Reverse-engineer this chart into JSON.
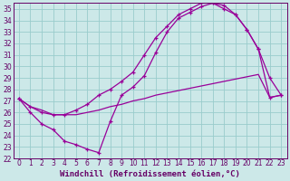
{
  "xlabel": "Windchill (Refroidissement éolien,°C)",
  "xlim": [
    -0.5,
    23.5
  ],
  "ylim": [
    22,
    35.5
  ],
  "xticks": [
    0,
    1,
    2,
    3,
    4,
    5,
    6,
    7,
    8,
    9,
    10,
    11,
    12,
    13,
    14,
    15,
    16,
    17,
    18,
    19,
    20,
    21,
    22,
    23
  ],
  "yticks": [
    22,
    23,
    24,
    25,
    26,
    27,
    28,
    29,
    30,
    31,
    32,
    33,
    34,
    35
  ],
  "bg_color": "#cce8e8",
  "grid_color": "#99cccc",
  "line_color": "#990099",
  "line1_x": [
    0,
    1,
    2,
    3,
    4,
    5,
    6,
    7,
    8,
    9,
    10,
    11,
    12,
    13,
    14,
    15,
    16,
    17,
    18,
    19,
    20,
    21,
    22,
    23
  ],
  "line1_y": [
    27.2,
    26.0,
    25.0,
    24.5,
    23.5,
    23.2,
    22.8,
    22.5,
    25.2,
    27.5,
    28.2,
    29.2,
    31.2,
    33.0,
    34.2,
    34.7,
    35.2,
    35.5,
    35.3,
    34.5,
    33.2,
    31.5,
    29.0,
    27.5
  ],
  "line2_x": [
    0,
    1,
    2,
    3,
    4,
    5,
    6,
    7,
    8,
    9,
    10,
    11,
    12,
    13,
    14,
    15,
    16,
    17,
    18,
    19,
    20,
    21,
    22,
    23
  ],
  "line2_y": [
    27.2,
    26.5,
    26.0,
    25.8,
    25.8,
    26.2,
    26.7,
    27.5,
    28.0,
    28.7,
    29.5,
    31.0,
    32.5,
    33.5,
    34.5,
    35.0,
    35.5,
    35.5,
    35.0,
    34.5,
    33.2,
    31.5,
    27.3,
    27.5
  ],
  "line3_x": [
    0,
    1,
    2,
    3,
    4,
    5,
    6,
    7,
    8,
    9,
    10,
    11,
    12,
    13,
    14,
    15,
    16,
    17,
    18,
    19,
    20,
    21,
    22,
    23
  ],
  "line3_y": [
    27.2,
    26.5,
    26.2,
    25.8,
    25.8,
    25.8,
    26.0,
    26.2,
    26.5,
    26.7,
    27.0,
    27.2,
    27.5,
    27.7,
    27.9,
    28.1,
    28.3,
    28.5,
    28.7,
    28.9,
    29.1,
    29.3,
    27.3,
    27.5
  ],
  "font_color": "#660066",
  "tick_fontsize": 5.5,
  "label_fontsize": 6.5
}
